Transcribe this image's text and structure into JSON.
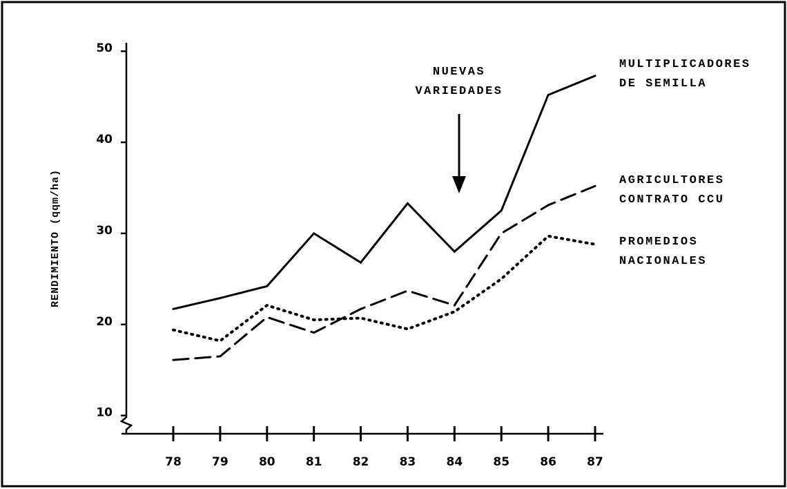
{
  "chart_data": {
    "type": "line",
    "y_label": "RENDIMIENTO (qqm/ha)",
    "annotation": "NUEVAS VARIEDADES",
    "categories": [
      "78",
      "79",
      "80",
      "81",
      "82",
      "83",
      "84",
      "85",
      "86",
      "87"
    ],
    "series": [
      {
        "name": "MULTIPLICADORES DE SEMILLA",
        "color": "#000000",
        "dash": "solid",
        "values": [
          21.7,
          22.9,
          24.2,
          30,
          26.8,
          33.3,
          28,
          32.5,
          45.2,
          47.3
        ]
      },
      {
        "name": "AGRICULTORES CONTRATO CCU",
        "color": "#000000",
        "dash": "dashed",
        "values": [
          16.1,
          16.5,
          20.8,
          19.1,
          21.7,
          23.7,
          22.1,
          30,
          33.1,
          35.2
        ]
      },
      {
        "name": "PROMEDIOS NACIONALES",
        "color": "#000000",
        "dash": "dotted",
        "values": [
          19.4,
          18.2,
          22.1,
          20.5,
          20.7,
          19.5,
          21.4,
          25,
          29.7,
          28.8
        ]
      }
    ],
    "ylim": [
      8,
      51
    ],
    "yticks": [
      10,
      20,
      30,
      40,
      50
    ],
    "grid": false
  }
}
